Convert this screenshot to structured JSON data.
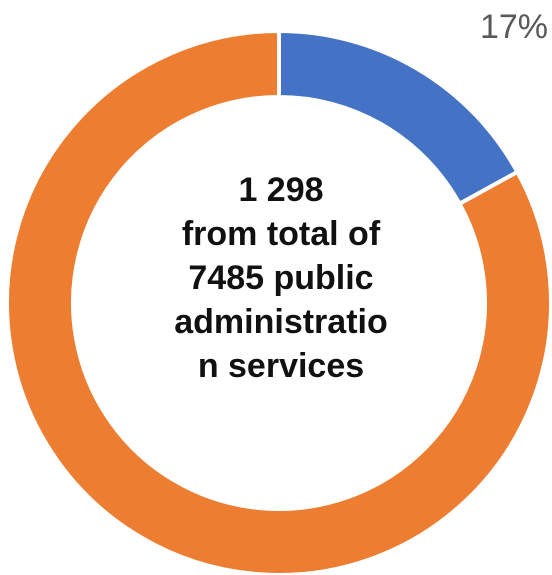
{
  "chart_data": {
    "type": "pie",
    "variant": "donut",
    "slices": [
      {
        "value": 17,
        "color": "#4472C4",
        "label": "17%"
      },
      {
        "value": 83,
        "color": "#ED7D31",
        "label": ""
      }
    ],
    "center_text": {
      "lines": [
        "1 298",
        "from total of",
        "7485 public",
        "administratio",
        "n services"
      ]
    }
  }
}
